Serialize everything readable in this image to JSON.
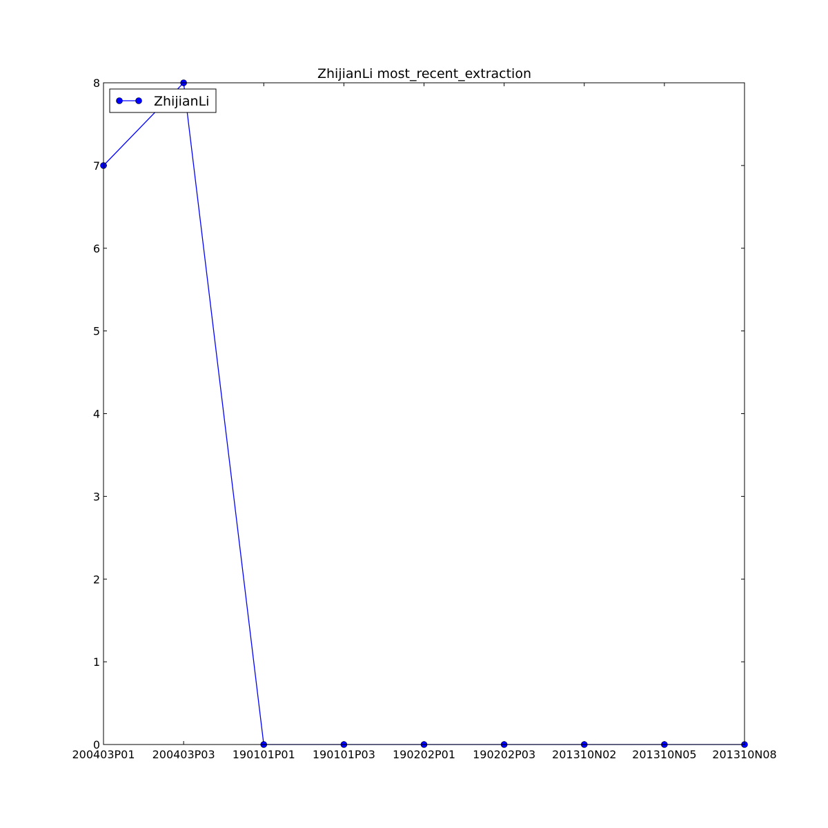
{
  "chart_data": {
    "type": "line",
    "title": "ZhijianLi most_recent_extraction",
    "xlabel": "",
    "ylabel": "",
    "categories": [
      "200403P01",
      "200403P03",
      "190101P01",
      "190101P03",
      "190202P01",
      "190202P03",
      "201310N02",
      "201310N05",
      "201310N08"
    ],
    "series": [
      {
        "name": "ZhijianLi",
        "values": [
          7,
          8,
          0,
          0,
          0,
          0,
          0,
          0,
          0
        ]
      }
    ],
    "ylim": [
      0,
      8
    ],
    "yticks": [
      0,
      1,
      2,
      3,
      4,
      5,
      6,
      7,
      8
    ],
    "grid": false,
    "legend_position": "top-left",
    "colors": {
      "series": "#0000ff",
      "axes": "#000000",
      "background": "#ffffff"
    }
  }
}
